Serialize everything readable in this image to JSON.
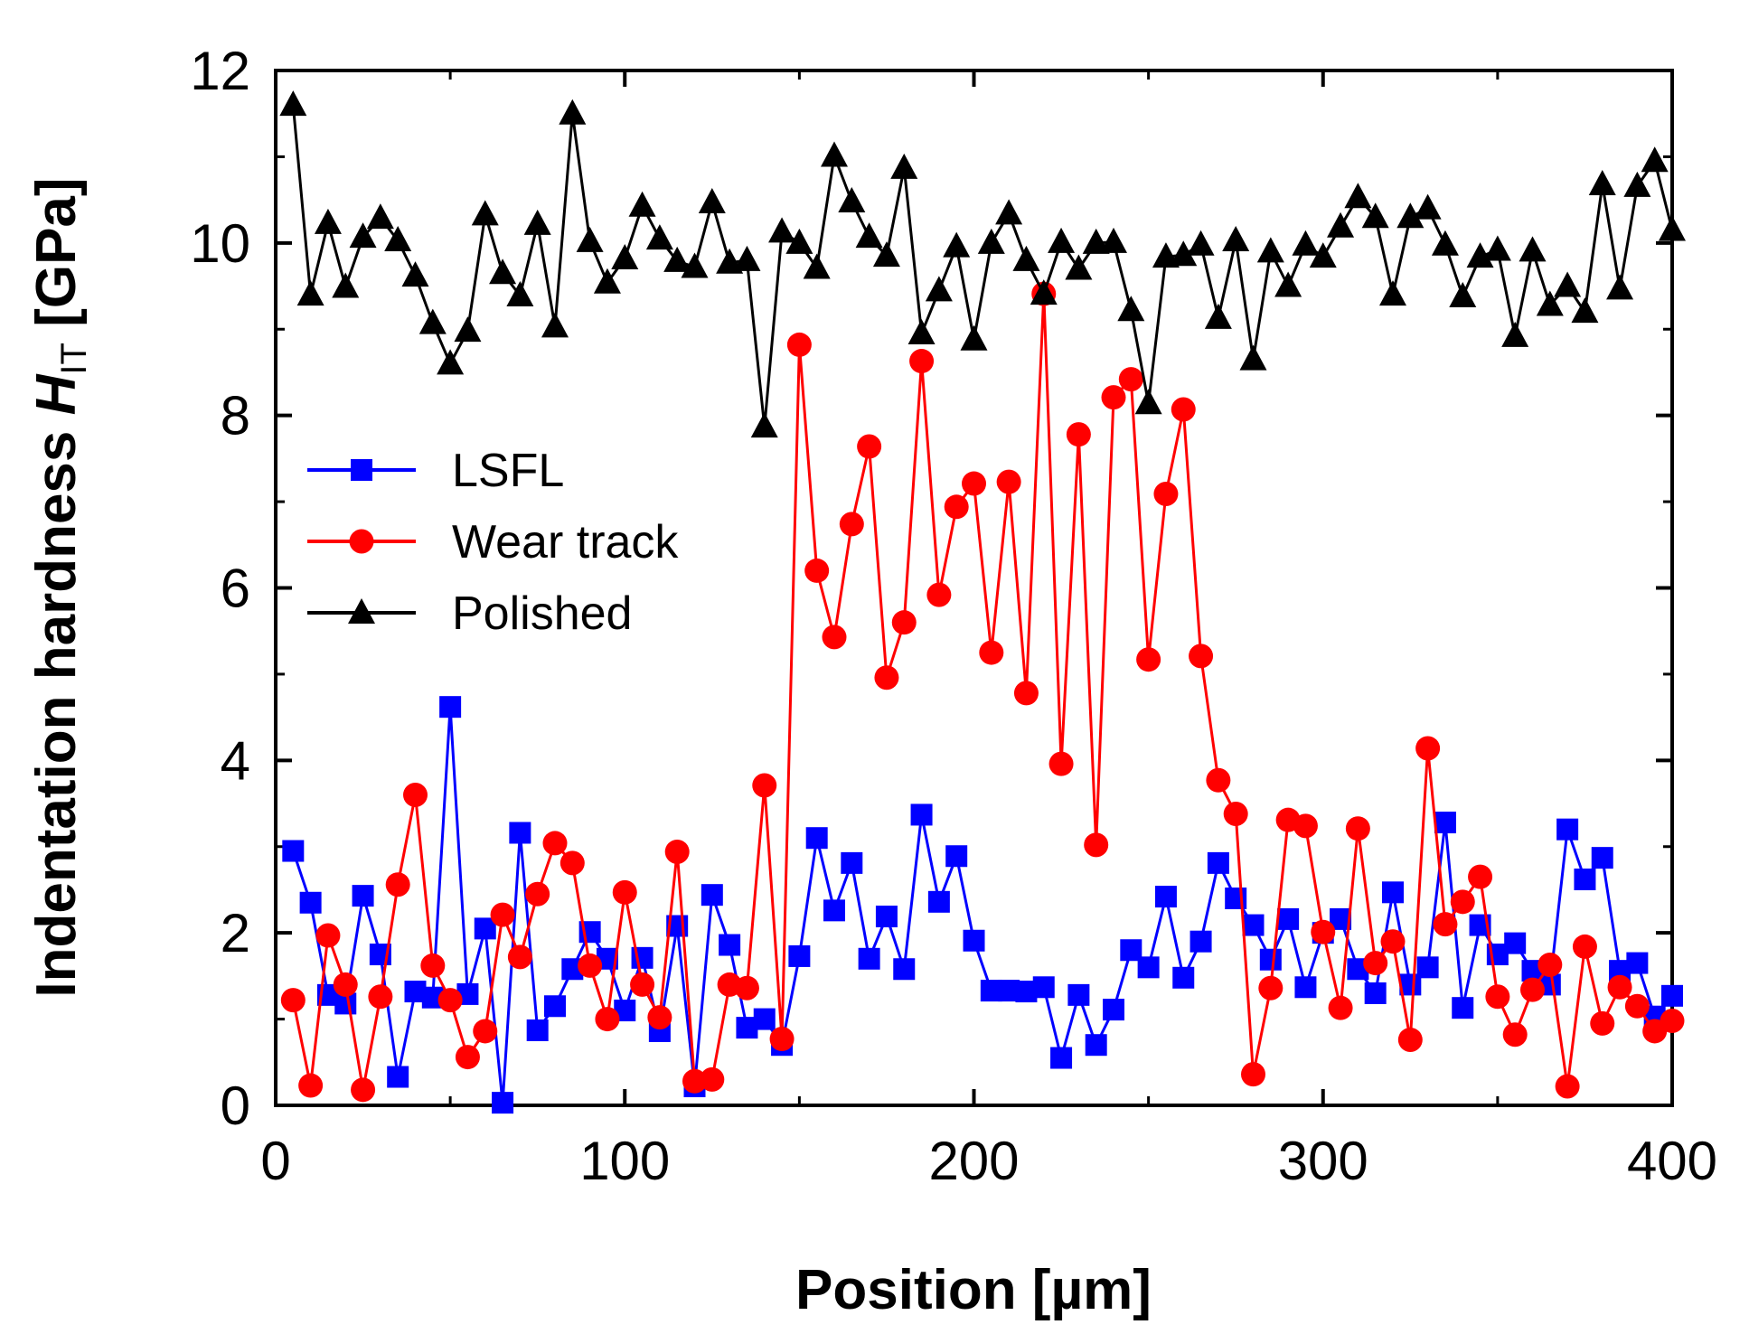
{
  "chart_data": {
    "type": "line",
    "title": "",
    "xlabel": "Position  [µm]",
    "ylabel": {
      "prefix": "Indentation hardness ",
      "symbol": "H",
      "subscript": "IT",
      "unit": "  [GPa]"
    },
    "xlim": [
      0,
      400
    ],
    "ylim": [
      0,
      12
    ],
    "x_ticks": [
      0,
      100,
      200,
      300,
      400
    ],
    "y_ticks": [
      0,
      2,
      4,
      6,
      8,
      10,
      12
    ],
    "grid": false,
    "legend_position": "center-left",
    "x": [
      5,
      10,
      15,
      20,
      25,
      30,
      35,
      40,
      45,
      50,
      55,
      60,
      65,
      70,
      75,
      80,
      85,
      90,
      95,
      100,
      105,
      110,
      115,
      120,
      125,
      130,
      135,
      140,
      145,
      150,
      155,
      160,
      165,
      170,
      175,
      180,
      185,
      190,
      195,
      200,
      205,
      210,
      215,
      220,
      225,
      230,
      235,
      240,
      245,
      250,
      255,
      260,
      265,
      270,
      275,
      280,
      285,
      290,
      295,
      300,
      305,
      310,
      315,
      320,
      325,
      330,
      335,
      340,
      345,
      350,
      355,
      360,
      365,
      370,
      375,
      380,
      385,
      390,
      395,
      400
    ],
    "series": [
      {
        "name": "LSFL",
        "color": "#0000ff",
        "marker": "square",
        "values": [
          2.95,
          2.35,
          1.28,
          1.18,
          2.43,
          1.75,
          0.33,
          1.32,
          1.25,
          4.62,
          1.29,
          2.05,
          0.03,
          3.16,
          0.87,
          1.15,
          1.58,
          2.01,
          1.7,
          1.1,
          1.71,
          0.86,
          2.08,
          0.22,
          2.44,
          1.86,
          0.9,
          1.0,
          0.7,
          1.73,
          3.1,
          2.26,
          2.81,
          1.7,
          2.19,
          1.58,
          3.37,
          2.36,
          2.89,
          1.91,
          1.33,
          1.33,
          1.32,
          1.37,
          0.55,
          1.28,
          0.7,
          1.11,
          1.8,
          1.6,
          2.42,
          1.48,
          1.9,
          2.81,
          2.4,
          2.09,
          1.69,
          2.16,
          1.37,
          2.0,
          2.16,
          1.58,
          1.3,
          2.47,
          1.4,
          1.6,
          3.28,
          1.13,
          2.09,
          1.75,
          1.88,
          1.56,
          1.4,
          3.2,
          2.62,
          2.87,
          1.56,
          1.65,
          1.03,
          1.27
        ]
      },
      {
        "name": "Wear track",
        "color": "#ff0000",
        "marker": "circle",
        "values": [
          1.22,
          0.23,
          1.97,
          1.4,
          0.18,
          1.26,
          2.56,
          3.6,
          1.62,
          1.22,
          0.56,
          0.86,
          2.21,
          1.72,
          2.45,
          3.04,
          2.81,
          1.62,
          1.0,
          2.47,
          1.4,
          1.02,
          2.94,
          0.28,
          0.3,
          1.4,
          1.36,
          3.71,
          0.77,
          8.82,
          6.2,
          5.43,
          6.74,
          7.64,
          4.96,
          5.6,
          8.63,
          5.92,
          6.94,
          7.21,
          5.25,
          7.23,
          4.78,
          9.41,
          3.96,
          7.78,
          3.02,
          8.21,
          8.42,
          5.17,
          7.09,
          8.07,
          5.21,
          3.77,
          3.38,
          0.36,
          1.36,
          3.31,
          3.24,
          2.01,
          1.13,
          3.21,
          1.65,
          1.9,
          0.76,
          4.14,
          2.1,
          2.36,
          2.65,
          1.26,
          0.82,
          1.34,
          1.63,
          0.22,
          1.84,
          0.95,
          1.37,
          1.15,
          0.86,
          0.98
        ]
      },
      {
        "name": "Polished",
        "color": "#000000",
        "marker": "triangle",
        "values": [
          11.6,
          9.4,
          10.23,
          9.49,
          10.07,
          10.29,
          10.03,
          9.62,
          9.07,
          8.6,
          8.98,
          10.33,
          9.65,
          9.39,
          10.22,
          9.03,
          11.5,
          10.02,
          9.54,
          9.82,
          10.43,
          10.05,
          9.79,
          9.72,
          10.47,
          9.77,
          9.8,
          7.87,
          10.13,
          10.0,
          9.71,
          11.01,
          10.48,
          10.07,
          9.85,
          10.87,
          8.95,
          9.45,
          9.96,
          8.88,
          10.0,
          10.34,
          9.8,
          9.41,
          10.01,
          9.7,
          10.0,
          10.01,
          9.22,
          8.14,
          9.84,
          9.86,
          9.98,
          9.13,
          10.03,
          8.65,
          9.9,
          9.5,
          9.98,
          9.84,
          10.19,
          10.53,
          10.3,
          9.4,
          10.3,
          10.4,
          9.98,
          9.38,
          9.84,
          9.92,
          8.92,
          9.91,
          9.28,
          9.5,
          9.2,
          10.68,
          9.47,
          10.66,
          10.95,
          10.15
        ]
      }
    ]
  }
}
